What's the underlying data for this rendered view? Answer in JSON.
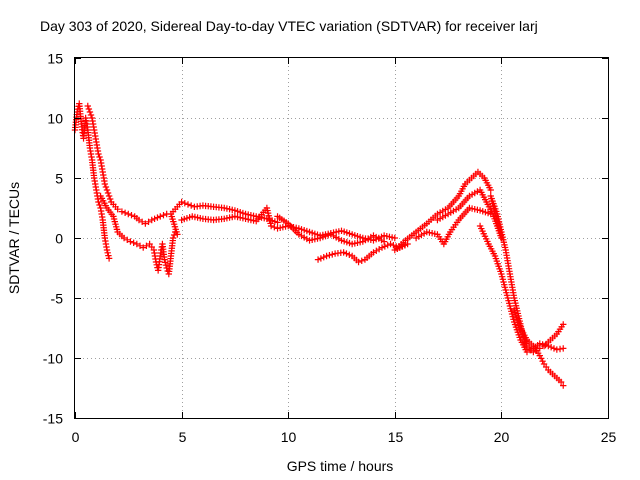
{
  "chart_data": {
    "type": "scatter",
    "title": "Day 303 of 2020, Sidereal Day-to-day VTEC variation (SDTVAR) for receiver larj",
    "xlabel": "GPS time / hours",
    "ylabel": "SDTVAR / TECUs",
    "xlim": [
      0,
      25
    ],
    "ylim": [
      -15,
      15
    ],
    "xticks": [
      "0",
      "5",
      "10",
      "15",
      "20",
      "25"
    ],
    "yticks": [
      "15",
      "10",
      "5",
      "0",
      "-5",
      "-10",
      "-15"
    ],
    "grid": true,
    "marker": "+",
    "color": "#ff0000",
    "series": [
      {
        "name": "larj",
        "points": [
          [
            0.0,
            9.0
          ],
          [
            0.1,
            10.5
          ],
          [
            0.2,
            11.2
          ],
          [
            0.3,
            9.5
          ],
          [
            0.4,
            8.3
          ],
          [
            0.5,
            10.0
          ],
          [
            0.6,
            9.0
          ],
          [
            0.7,
            7.5
          ],
          [
            0.8,
            6.5
          ],
          [
            0.9,
            5.0
          ],
          [
            1.0,
            4.0
          ],
          [
            1.1,
            3.0
          ],
          [
            1.2,
            2.5
          ],
          [
            1.3,
            1.5
          ],
          [
            1.4,
            0.0
          ],
          [
            1.5,
            -1.0
          ],
          [
            1.6,
            -1.7
          ],
          [
            0.6,
            11.0
          ],
          [
            0.7,
            10.5
          ],
          [
            0.8,
            10.0
          ],
          [
            0.9,
            9.0
          ],
          [
            1.0,
            8.0
          ],
          [
            1.1,
            7.0
          ],
          [
            1.2,
            6.5
          ],
          [
            1.3,
            5.5
          ],
          [
            1.4,
            4.5
          ],
          [
            1.5,
            4.0
          ],
          [
            1.6,
            3.5
          ],
          [
            1.7,
            3.0
          ],
          [
            1.8,
            2.8
          ],
          [
            1.9,
            2.6
          ],
          [
            2.0,
            2.4
          ],
          [
            2.2,
            2.2
          ],
          [
            2.5,
            2.0
          ],
          [
            2.8,
            1.8
          ],
          [
            3.0,
            1.5
          ],
          [
            3.3,
            1.2
          ],
          [
            3.6,
            1.5
          ],
          [
            4.0,
            1.8
          ],
          [
            4.3,
            2.0
          ],
          [
            1.2,
            3.5
          ],
          [
            1.5,
            2.5
          ],
          [
            1.8,
            1.8
          ],
          [
            2.0,
            0.5
          ],
          [
            2.3,
            0.0
          ],
          [
            2.6,
            -0.3
          ],
          [
            2.9,
            -0.5
          ],
          [
            3.2,
            -0.8
          ],
          [
            3.5,
            -0.5
          ],
          [
            3.7,
            -1.0
          ],
          [
            3.8,
            -2.0
          ],
          [
            3.9,
            -2.7
          ],
          [
            4.0,
            -1.5
          ],
          [
            4.1,
            -0.5
          ],
          [
            4.2,
            -1.8
          ],
          [
            4.3,
            -2.5
          ],
          [
            4.4,
            -3.0
          ],
          [
            4.5,
            -1.5
          ],
          [
            4.6,
            0.0
          ],
          [
            4.7,
            0.5
          ],
          [
            4.8,
            0.3
          ],
          [
            4.5,
            2.0
          ],
          [
            4.8,
            2.6
          ],
          [
            5.0,
            3.0
          ],
          [
            5.3,
            2.8
          ],
          [
            5.6,
            2.6
          ],
          [
            6.0,
            2.7
          ],
          [
            6.5,
            2.6
          ],
          [
            7.0,
            2.5
          ],
          [
            7.5,
            2.3
          ],
          [
            8.0,
            2.0
          ],
          [
            8.5,
            1.8
          ],
          [
            9.0,
            1.6
          ],
          [
            9.5,
            1.3
          ],
          [
            5.0,
            1.5
          ],
          [
            5.5,
            1.8
          ],
          [
            6.0,
            1.6
          ],
          [
            6.5,
            1.5
          ],
          [
            7.0,
            1.6
          ],
          [
            7.5,
            1.8
          ],
          [
            8.0,
            1.6
          ],
          [
            8.5,
            1.4
          ],
          [
            9.0,
            2.5
          ],
          [
            9.2,
            1.0
          ],
          [
            9.5,
            0.8
          ],
          [
            10.0,
            1.0
          ],
          [
            10.5,
            0.8
          ],
          [
            11.0,
            0.5
          ],
          [
            11.5,
            0.2
          ],
          [
            12.0,
            0.4
          ],
          [
            12.5,
            0.6
          ],
          [
            13.0,
            0.3
          ],
          [
            13.5,
            0.0
          ],
          [
            14.0,
            -0.2
          ],
          [
            14.5,
            0.2
          ],
          [
            15.0,
            0.0
          ],
          [
            9.5,
            1.8
          ],
          [
            10.0,
            1.2
          ],
          [
            10.5,
            0.3
          ],
          [
            11.0,
            -0.2
          ],
          [
            11.5,
            0.0
          ],
          [
            12.0,
            0.3
          ],
          [
            12.5,
            -0.2
          ],
          [
            13.0,
            -0.5
          ],
          [
            13.5,
            -0.3
          ],
          [
            14.0,
            0.2
          ],
          [
            14.5,
            -0.3
          ],
          [
            11.4,
            -1.8
          ],
          [
            11.8,
            -1.5
          ],
          [
            12.2,
            -1.3
          ],
          [
            12.6,
            -1.2
          ],
          [
            13.0,
            -1.5
          ],
          [
            13.3,
            -2.0
          ],
          [
            13.6,
            -1.8
          ],
          [
            14.0,
            -1.2
          ],
          [
            14.4,
            -0.8
          ],
          [
            14.8,
            -0.5
          ],
          [
            15.2,
            -0.8
          ],
          [
            15.6,
            -0.5
          ],
          [
            15.0,
            -1.0
          ],
          [
            15.5,
            -0.2
          ],
          [
            16.0,
            0.5
          ],
          [
            16.5,
            1.2
          ],
          [
            17.0,
            2.0
          ],
          [
            17.5,
            2.5
          ],
          [
            18.0,
            3.5
          ],
          [
            18.3,
            4.5
          ],
          [
            18.6,
            5.0
          ],
          [
            18.9,
            5.5
          ],
          [
            19.2,
            5.0
          ],
          [
            19.5,
            4.0
          ],
          [
            16.0,
            0.0
          ],
          [
            16.5,
            0.5
          ],
          [
            17.0,
            0.3
          ],
          [
            17.3,
            -0.5
          ],
          [
            17.6,
            0.5
          ],
          [
            18.0,
            1.5
          ],
          [
            18.5,
            2.5
          ],
          [
            19.0,
            2.3
          ],
          [
            19.5,
            2.0
          ],
          [
            17.0,
            1.5
          ],
          [
            17.5,
            2.0
          ],
          [
            18.0,
            2.5
          ],
          [
            18.5,
            3.5
          ],
          [
            19.0,
            4.0
          ],
          [
            19.3,
            3.0
          ],
          [
            19.6,
            2.0
          ],
          [
            19.8,
            1.0
          ],
          [
            20.0,
            0.0
          ],
          [
            19.5,
            3.5
          ],
          [
            19.8,
            2.0
          ],
          [
            20.0,
            0.5
          ],
          [
            20.2,
            -1.0
          ],
          [
            20.4,
            -3.0
          ],
          [
            20.6,
            -5.0
          ],
          [
            20.8,
            -6.5
          ],
          [
            21.0,
            -8.0
          ],
          [
            21.2,
            -9.0
          ],
          [
            21.5,
            -9.5
          ],
          [
            21.8,
            -9.2
          ],
          [
            22.0,
            -9.0
          ],
          [
            22.3,
            -8.5
          ],
          [
            22.6,
            -8.0
          ],
          [
            22.9,
            -7.2
          ],
          [
            19.0,
            1.0
          ],
          [
            19.4,
            -0.5
          ],
          [
            19.7,
            -1.5
          ],
          [
            20.0,
            -3.0
          ],
          [
            20.3,
            -5.0
          ],
          [
            20.6,
            -7.0
          ],
          [
            20.9,
            -8.5
          ],
          [
            21.2,
            -9.5
          ],
          [
            21.5,
            -9.2
          ],
          [
            21.8,
            -8.8
          ],
          [
            22.2,
            -9.0
          ],
          [
            22.6,
            -9.3
          ],
          [
            22.9,
            -9.2
          ],
          [
            20.6,
            -6.0
          ],
          [
            20.9,
            -7.5
          ],
          [
            21.2,
            -8.5
          ],
          [
            21.5,
            -9.0
          ],
          [
            21.8,
            -9.8
          ],
          [
            22.0,
            -10.5
          ],
          [
            22.2,
            -11.0
          ],
          [
            22.5,
            -11.5
          ],
          [
            22.8,
            -12.0
          ],
          [
            22.9,
            -12.3
          ]
        ]
      }
    ]
  }
}
